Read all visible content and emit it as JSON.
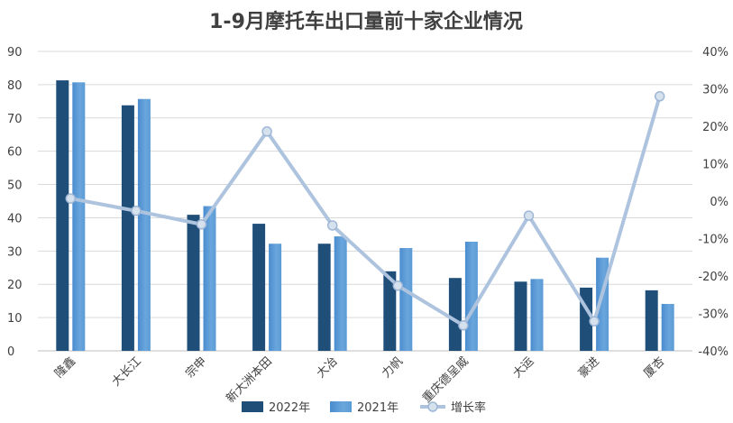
{
  "chart_data": {
    "type": "bar",
    "title": "1-9月摩托车出口量前十家企业情况",
    "categories": [
      "隆鑫",
      "大长江",
      "宗申",
      "新大洲本田",
      "大冶",
      "力帆",
      "重庆德呈威",
      "大运",
      "豪进",
      "厦杏"
    ],
    "series": [
      {
        "name": "2022年",
        "type": "bar",
        "axis": "left",
        "color": "#1f4e79",
        "values": [
          81.3,
          73.8,
          40.9,
          38.2,
          32.2,
          23.9,
          21.9,
          20.8,
          19.0,
          18.2
        ]
      },
      {
        "name": "2021年",
        "type": "bar",
        "axis": "left",
        "color": "#5b9bd5",
        "values": [
          80.7,
          75.7,
          43.5,
          32.2,
          34.4,
          30.9,
          32.8,
          21.6,
          28.0,
          14.1
        ]
      },
      {
        "name": "增长率",
        "type": "line",
        "axis": "right",
        "color": "#adc3de",
        "values": [
          0.7,
          -2.6,
          -6.2,
          18.6,
          -6.5,
          -22.6,
          -33.2,
          -3.9,
          -32.1,
          28.0
        ]
      }
    ],
    "left_axis": {
      "min": 0,
      "max": 90,
      "step": 10,
      "tick_labels": [
        "0",
        "10",
        "20",
        "30",
        "40",
        "50",
        "60",
        "70",
        "80",
        "90"
      ]
    },
    "right_axis": {
      "min": -40,
      "max": 40,
      "step": 10,
      "tick_labels": [
        "-40%",
        "-30%",
        "-20%",
        "-10%",
        "0%",
        "10%",
        "20%",
        "30%",
        "40%"
      ]
    },
    "grid": true,
    "legend_position": "bottom"
  }
}
